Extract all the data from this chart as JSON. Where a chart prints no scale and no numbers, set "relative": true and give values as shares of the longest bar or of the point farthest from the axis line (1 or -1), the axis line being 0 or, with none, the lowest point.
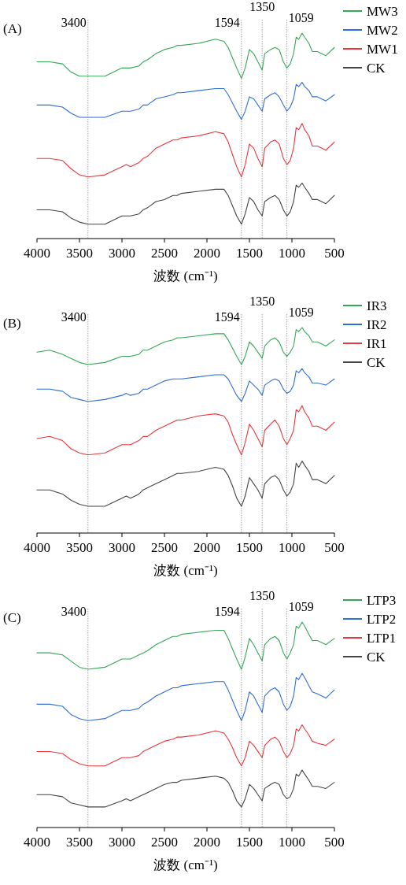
{
  "chart_data": [
    {
      "type": "line",
      "title": "(A)",
      "xlabel": "波数 (cm⁻¹)",
      "relative": true,
      "legend": "top right",
      "xlim": [
        4000,
        500
      ],
      "xticks": [
        4000,
        3500,
        3000,
        2500,
        2000,
        1500,
        1000,
        500
      ],
      "x": [
        4000,
        3850,
        3700,
        3600,
        3500,
        3400,
        3200,
        3000,
        2950,
        2900,
        2800,
        2750,
        2700,
        2600,
        2500,
        2400,
        2350,
        2300,
        2100,
        1900,
        1800,
        1750,
        1700,
        1650,
        1594,
        1550,
        1500,
        1450,
        1400,
        1350,
        1320,
        1250,
        1200,
        1150,
        1100,
        1059,
        1020,
        980,
        950,
        920,
        880,
        850,
        800,
        760,
        700,
        600,
        500
      ],
      "ref_lines": [
        {
          "axis": "x",
          "value": 3400,
          "label": "3400",
          "color": "#8a8a8a",
          "line_style": "dotted"
        },
        {
          "axis": "x",
          "value": 1594,
          "label": "1594",
          "color": "#8a8a8a",
          "line_style": "dotted"
        },
        {
          "axis": "x",
          "value": 1350,
          "label": "1350",
          "color": "#8a8a8a",
          "line_style": "dotted"
        },
        {
          "axis": "x",
          "value": 1059,
          "label": "1059",
          "color": "#8a8a8a",
          "line_style": "dotted"
        }
      ],
      "series": [
        {
          "name": "MW3",
          "color": "#35a856",
          "values": [
            0.86,
            0.86,
            0.85,
            0.81,
            0.79,
            0.79,
            0.79,
            0.83,
            0.83,
            0.83,
            0.84,
            0.86,
            0.87,
            0.9,
            0.92,
            0.93,
            0.94,
            0.94,
            0.95,
            0.97,
            0.96,
            0.93,
            0.88,
            0.83,
            0.78,
            0.83,
            0.92,
            0.9,
            0.86,
            0.82,
            0.9,
            0.92,
            0.93,
            0.92,
            0.86,
            0.83,
            0.85,
            0.9,
            0.98,
            0.97,
            1,
            0.98,
            0.95,
            0.91,
            0.91,
            0.89,
            0.93
          ]
        },
        {
          "name": "MW2",
          "color": "#2f6fd8",
          "values": [
            0.65,
            0.65,
            0.64,
            0.61,
            0.59,
            0.59,
            0.59,
            0.62,
            0.62,
            0.62,
            0.63,
            0.65,
            0.65,
            0.68,
            0.69,
            0.7,
            0.71,
            0.71,
            0.72,
            0.73,
            0.73,
            0.7,
            0.66,
            0.62,
            0.58,
            0.62,
            0.69,
            0.68,
            0.65,
            0.62,
            0.68,
            0.7,
            0.71,
            0.69,
            0.65,
            0.62,
            0.64,
            0.68,
            0.75,
            0.74,
            0.76,
            0.74,
            0.72,
            0.69,
            0.69,
            0.67,
            0.7
          ]
        },
        {
          "name": "MW1",
          "color": "#e8383d",
          "values": [
            0.39,
            0.39,
            0.38,
            0.34,
            0.31,
            0.3,
            0.31,
            0.35,
            0.36,
            0.35,
            0.37,
            0.39,
            0.4,
            0.44,
            0.46,
            0.48,
            0.48,
            0.49,
            0.5,
            0.52,
            0.51,
            0.47,
            0.41,
            0.35,
            0.3,
            0.36,
            0.46,
            0.44,
            0.39,
            0.35,
            0.44,
            0.47,
            0.48,
            0.46,
            0.39,
            0.36,
            0.38,
            0.44,
            0.54,
            0.53,
            0.56,
            0.53,
            0.5,
            0.45,
            0.45,
            0.43,
            0.47
          ]
        },
        {
          "name": "CK",
          "color": "#444444",
          "values": [
            0.14,
            0.14,
            0.13,
            0.1,
            0.08,
            0.07,
            0.07,
            0.11,
            0.11,
            0.11,
            0.12,
            0.14,
            0.15,
            0.18,
            0.19,
            0.21,
            0.21,
            0.22,
            0.23,
            0.24,
            0.24,
            0.21,
            0.16,
            0.11,
            0.07,
            0.12,
            0.2,
            0.18,
            0.14,
            0.11,
            0.18,
            0.2,
            0.21,
            0.19,
            0.14,
            0.11,
            0.13,
            0.18,
            0.26,
            0.25,
            0.27,
            0.25,
            0.22,
            0.19,
            0.19,
            0.17,
            0.21
          ]
        }
      ]
    },
    {
      "type": "line",
      "title": "(B)",
      "xlabel": "波数 (cm⁻¹)",
      "relative": true,
      "legend": "top right",
      "xlim": [
        4000,
        500
      ],
      "xticks": [
        4000,
        3500,
        3000,
        2500,
        2000,
        1500,
        1000,
        500
      ],
      "x": [
        4000,
        3850,
        3700,
        3600,
        3500,
        3400,
        3200,
        3000,
        2950,
        2900,
        2800,
        2750,
        2700,
        2600,
        2500,
        2400,
        2350,
        2300,
        2100,
        1900,
        1800,
        1750,
        1700,
        1650,
        1594,
        1550,
        1500,
        1450,
        1400,
        1350,
        1320,
        1250,
        1200,
        1150,
        1100,
        1059,
        1020,
        980,
        950,
        920,
        880,
        850,
        800,
        760,
        700,
        600,
        500
      ],
      "ref_lines": [
        {
          "axis": "x",
          "value": 3400,
          "label": "3400",
          "color": "#8a8a8a",
          "line_style": "dotted"
        },
        {
          "axis": "x",
          "value": 1594,
          "label": "1594",
          "color": "#8a8a8a",
          "line_style": "dotted"
        },
        {
          "axis": "x",
          "value": 1350,
          "label": "1350",
          "color": "#8a8a8a",
          "line_style": "dotted"
        },
        {
          "axis": "x",
          "value": 1059,
          "label": "1059",
          "color": "#8a8a8a",
          "line_style": "dotted"
        }
      ],
      "series": [
        {
          "name": "IR3",
          "color": "#35a856",
          "values": [
            0.88,
            0.89,
            0.87,
            0.85,
            0.83,
            0.82,
            0.83,
            0.86,
            0.86,
            0.86,
            0.87,
            0.89,
            0.89,
            0.91,
            0.93,
            0.94,
            0.95,
            0.95,
            0.96,
            0.97,
            0.97,
            0.94,
            0.9,
            0.86,
            0.82,
            0.86,
            0.93,
            0.91,
            0.88,
            0.85,
            0.91,
            0.94,
            0.95,
            0.93,
            0.88,
            0.86,
            0.88,
            0.91,
            0.99,
            0.98,
            1,
            0.98,
            0.96,
            0.93,
            0.93,
            0.91,
            0.94
          ]
        },
        {
          "name": "IR2",
          "color": "#2f6fd8",
          "values": [
            0.7,
            0.7,
            0.69,
            0.66,
            0.65,
            0.64,
            0.65,
            0.67,
            0.68,
            0.67,
            0.68,
            0.7,
            0.7,
            0.72,
            0.74,
            0.75,
            0.75,
            0.75,
            0.76,
            0.77,
            0.77,
            0.75,
            0.71,
            0.67,
            0.64,
            0.68,
            0.74,
            0.72,
            0.7,
            0.67,
            0.72,
            0.74,
            0.75,
            0.74,
            0.7,
            0.68,
            0.69,
            0.72,
            0.79,
            0.78,
            0.8,
            0.78,
            0.76,
            0.73,
            0.73,
            0.72,
            0.75
          ]
        },
        {
          "name": "IR1",
          "color": "#e8383d",
          "values": [
            0.46,
            0.47,
            0.45,
            0.41,
            0.39,
            0.38,
            0.39,
            0.43,
            0.43,
            0.43,
            0.45,
            0.47,
            0.47,
            0.5,
            0.52,
            0.54,
            0.55,
            0.55,
            0.57,
            0.58,
            0.57,
            0.54,
            0.48,
            0.43,
            0.38,
            0.44,
            0.53,
            0.5,
            0.46,
            0.42,
            0.5,
            0.53,
            0.55,
            0.52,
            0.46,
            0.43,
            0.46,
            0.5,
            0.6,
            0.59,
            0.62,
            0.59,
            0.56,
            0.52,
            0.52,
            0.5,
            0.54
          ]
        },
        {
          "name": "CK",
          "color": "#444444",
          "values": [
            0.21,
            0.21,
            0.19,
            0.16,
            0.14,
            0.13,
            0.13,
            0.17,
            0.18,
            0.17,
            0.19,
            0.21,
            0.22,
            0.24,
            0.26,
            0.28,
            0.29,
            0.29,
            0.3,
            0.32,
            0.31,
            0.28,
            0.23,
            0.17,
            0.13,
            0.18,
            0.27,
            0.24,
            0.21,
            0.17,
            0.24,
            0.27,
            0.28,
            0.26,
            0.21,
            0.18,
            0.2,
            0.24,
            0.34,
            0.32,
            0.35,
            0.33,
            0.3,
            0.26,
            0.26,
            0.24,
            0.28
          ]
        }
      ]
    },
    {
      "type": "line",
      "title": "(C)",
      "xlabel": "波数 (cm⁻¹)",
      "relative": true,
      "legend": "top right",
      "xlim": [
        4000,
        500
      ],
      "xticks": [
        4000,
        3500,
        3000,
        2500,
        2000,
        1500,
        1000,
        500
      ],
      "x": [
        4000,
        3850,
        3700,
        3600,
        3500,
        3400,
        3200,
        3000,
        2950,
        2900,
        2800,
        2750,
        2700,
        2600,
        2500,
        2400,
        2350,
        2300,
        2100,
        1900,
        1800,
        1750,
        1700,
        1650,
        1594,
        1550,
        1500,
        1450,
        1400,
        1350,
        1320,
        1250,
        1200,
        1150,
        1100,
        1059,
        1020,
        980,
        950,
        920,
        880,
        850,
        800,
        760,
        700,
        600,
        500
      ],
      "ref_lines": [
        {
          "axis": "x",
          "value": 3400,
          "label": "3400",
          "color": "#8a8a8a",
          "line_style": "dotted"
        },
        {
          "axis": "x",
          "value": 1594,
          "label": "1594",
          "color": "#8a8a8a",
          "line_style": "dotted"
        },
        {
          "axis": "x",
          "value": 1350,
          "label": "1350",
          "color": "#8a8a8a",
          "line_style": "dotted"
        },
        {
          "axis": "x",
          "value": 1059,
          "label": "1059",
          "color": "#8a8a8a",
          "line_style": "dotted"
        }
      ],
      "series": [
        {
          "name": "LTP3",
          "color": "#35a856",
          "values": [
            0.85,
            0.85,
            0.84,
            0.81,
            0.78,
            0.77,
            0.78,
            0.82,
            0.82,
            0.82,
            0.84,
            0.85,
            0.86,
            0.89,
            0.91,
            0.93,
            0.93,
            0.94,
            0.95,
            0.96,
            0.96,
            0.92,
            0.87,
            0.82,
            0.77,
            0.83,
            0.92,
            0.89,
            0.85,
            0.81,
            0.89,
            0.92,
            0.93,
            0.91,
            0.85,
            0.82,
            0.85,
            0.89,
            0.98,
            0.97,
            1,
            0.98,
            0.94,
            0.91,
            0.91,
            0.89,
            0.92
          ]
        },
        {
          "name": "LTP2",
          "color": "#2f6fd8",
          "values": [
            0.6,
            0.6,
            0.59,
            0.55,
            0.53,
            0.52,
            0.53,
            0.57,
            0.57,
            0.57,
            0.58,
            0.6,
            0.61,
            0.64,
            0.66,
            0.68,
            0.68,
            0.69,
            0.7,
            0.71,
            0.71,
            0.67,
            0.62,
            0.57,
            0.52,
            0.57,
            0.66,
            0.64,
            0.6,
            0.56,
            0.64,
            0.67,
            0.68,
            0.66,
            0.6,
            0.57,
            0.59,
            0.64,
            0.73,
            0.72,
            0.75,
            0.73,
            0.69,
            0.66,
            0.65,
            0.63,
            0.67
          ]
        },
        {
          "name": "LTP1",
          "color": "#e8383d",
          "values": [
            0.37,
            0.37,
            0.36,
            0.33,
            0.31,
            0.3,
            0.3,
            0.34,
            0.34,
            0.34,
            0.35,
            0.37,
            0.38,
            0.4,
            0.42,
            0.43,
            0.44,
            0.44,
            0.45,
            0.47,
            0.46,
            0.43,
            0.39,
            0.34,
            0.3,
            0.34,
            0.42,
            0.4,
            0.37,
            0.34,
            0.4,
            0.43,
            0.44,
            0.42,
            0.37,
            0.34,
            0.36,
            0.4,
            0.48,
            0.47,
            0.5,
            0.48,
            0.45,
            0.42,
            0.41,
            0.4,
            0.43
          ]
        },
        {
          "name": "CK",
          "color": "#444444",
          "values": [
            0.16,
            0.16,
            0.15,
            0.12,
            0.11,
            0.1,
            0.1,
            0.13,
            0.14,
            0.13,
            0.15,
            0.16,
            0.17,
            0.19,
            0.21,
            0.22,
            0.22,
            0.23,
            0.24,
            0.25,
            0.24,
            0.22,
            0.18,
            0.13,
            0.1,
            0.14,
            0.21,
            0.19,
            0.16,
            0.13,
            0.19,
            0.21,
            0.22,
            0.21,
            0.16,
            0.14,
            0.15,
            0.19,
            0.26,
            0.25,
            0.28,
            0.26,
            0.23,
            0.2,
            0.2,
            0.19,
            0.22
          ]
        }
      ]
    }
  ]
}
